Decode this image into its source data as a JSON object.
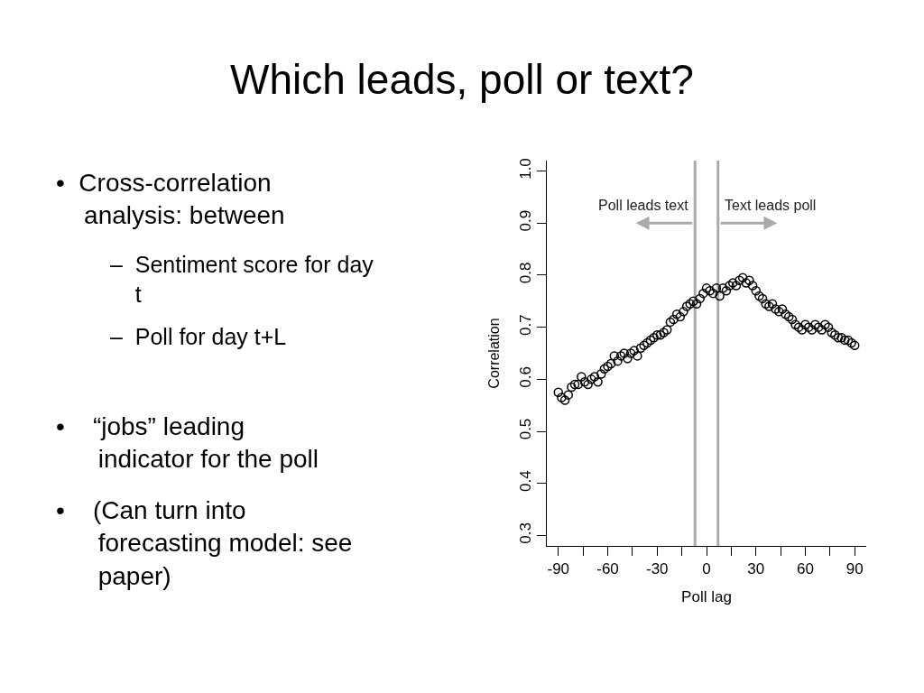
{
  "chart_data": {
    "type": "scatter",
    "title": "Which leads, poll or text?",
    "xlabel": "Poll lag",
    "ylabel": "Correlation",
    "x": [
      -90,
      -88,
      -86,
      -84,
      -82,
      -80,
      -78,
      -76,
      -74,
      -72,
      -70,
      -68,
      -66,
      -64,
      -62,
      -60,
      -58,
      -56,
      -54,
      -52,
      -50,
      -48,
      -46,
      -44,
      -42,
      -40,
      -38,
      -36,
      -34,
      -32,
      -30,
      -28,
      -26,
      -24,
      -22,
      -20,
      -18,
      -16,
      -14,
      -12,
      -10,
      -8,
      -6,
      -4,
      -2,
      0,
      2,
      4,
      6,
      8,
      10,
      12,
      14,
      16,
      18,
      20,
      22,
      24,
      26,
      28,
      30,
      32,
      34,
      36,
      38,
      40,
      42,
      44,
      46,
      48,
      50,
      52,
      54,
      56,
      58,
      60,
      62,
      64,
      66,
      68,
      70,
      72,
      74,
      76,
      78,
      80,
      82,
      84,
      86,
      88,
      90
    ],
    "series": [
      {
        "color": "#000000",
        "values": [
          0.575,
          0.565,
          0.56,
          0.57,
          0.585,
          0.59,
          0.59,
          0.605,
          0.595,
          0.59,
          0.6,
          0.605,
          0.595,
          0.61,
          0.62,
          0.625,
          0.63,
          0.645,
          0.635,
          0.645,
          0.65,
          0.64,
          0.65,
          0.655,
          0.645,
          0.66,
          0.665,
          0.67,
          0.675,
          0.68,
          0.685,
          0.685,
          0.69,
          0.695,
          0.71,
          0.715,
          0.725,
          0.72,
          0.73,
          0.74,
          0.745,
          0.75,
          0.745,
          0.755,
          0.765,
          0.775,
          0.77,
          0.765,
          0.775,
          0.76,
          0.775,
          0.77,
          0.78,
          0.785,
          0.78,
          0.79,
          0.795,
          0.785,
          0.79,
          0.78,
          0.77,
          0.76,
          0.755,
          0.745,
          0.74,
          0.745,
          0.735,
          0.73,
          0.735,
          0.725,
          0.72,
          0.715,
          0.705,
          0.7,
          0.695,
          0.705,
          0.7,
          0.695,
          0.705,
          0.7,
          0.695,
          0.705,
          0.7,
          0.69,
          0.685,
          0.68,
          0.68,
          0.675,
          0.675,
          0.67,
          0.665
        ]
      }
    ],
    "marker": "circle",
    "grid": false,
    "legend": false,
    "xlim": [
      -97,
      97
    ],
    "ylim": [
      0.28,
      1.02
    ],
    "xticks": [
      -90,
      {
        "value": -75,
        "label": null
      },
      -60,
      {
        "value": -45,
        "label": null
      },
      -30,
      {
        "value": -15,
        "label": null
      },
      0,
      {
        "value": 15,
        "label": null
      },
      30,
      {
        "value": 45,
        "label": null
      },
      60,
      {
        "value": 75,
        "label": null
      },
      90
    ],
    "yticks": [
      0.3,
      0.4,
      0.5,
      0.6,
      0.7,
      0.8,
      0.9,
      {
        "value": 1.0,
        "label": "1.0"
      }
    ],
    "ref_lines": [
      {
        "axis": "x",
        "value": -7,
        "color": "#aaaaaa"
      },
      {
        "axis": "x",
        "value": 7,
        "color": "#aaaaaa"
      }
    ],
    "annotations": [
      {
        "text": "Poll leads text",
        "x": -7,
        "y": 0.9
      },
      {
        "text": "Text leads poll",
        "x": 7,
        "y": 0.9
      },
      "•  Cross-correlation\n    analysis: between",
      "–  Sentiment score for day\n    t",
      "–  Poll for day t+L",
      "•    “jobs” leading\n      indicator for the poll",
      "•    (Can turn into\n      forecasting model: see\n      paper)"
    ]
  }
}
